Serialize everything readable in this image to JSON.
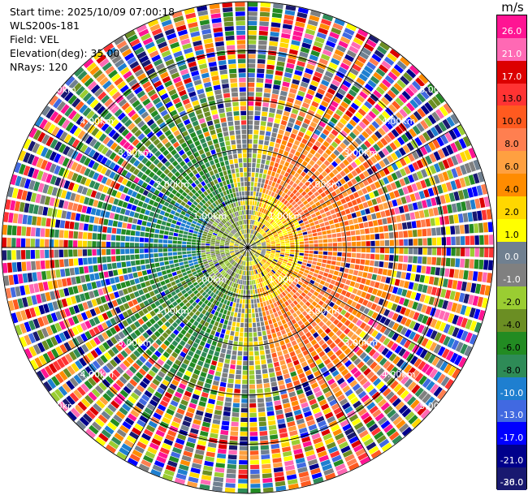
{
  "header": {
    "start_time": "Start time: 2025/10/09 07:00:18",
    "instrument": "WLS200s-181",
    "field": "Field: VEL",
    "elevation": "Elevation(deg): 35.00",
    "nrays": "NRays: 120"
  },
  "colorbar": {
    "unit": "m/s",
    "labels": [
      "26.0",
      "21.0",
      "17.0",
      "13.0",
      "10.0",
      "8.0",
      "6.0",
      "4.0",
      "2.0",
      "1.0",
      "0.0",
      "-1.0",
      "-2.0",
      "-4.0",
      "-6.0",
      "-8.0",
      "-10.0",
      "-13.0",
      "-17.0",
      "-21.0",
      "-26.0",
      "-30.0"
    ],
    "colors": [
      "#ff1493",
      "#ff69b4",
      "#dc0000",
      "#ff3333",
      "#ff5a1f",
      "#ff7f50",
      "#ffa040",
      "#ff8c00",
      "#ffd700",
      "#ffff00",
      "#708090",
      "#808080",
      "#9acd32",
      "#6b8e23",
      "#228b22",
      "#2e8b57",
      "#1e7fd0",
      "#4169e1",
      "#0000ff",
      "#00008b",
      "#191970"
    ]
  },
  "chart_data": {
    "type": "ppi",
    "field": "VEL",
    "units": "m/s",
    "elevation_deg": 35.0,
    "n_rays": 120,
    "range_rings_km": [
      1.0,
      2.0,
      3.0,
      4.0,
      5.0
    ],
    "ring_labels": [
      "1.00km",
      "2.00km",
      "3.00km",
      "4.00km",
      "5.00km"
    ],
    "value_range": [
      -30,
      26
    ],
    "dominant_pattern": {
      "east_sector": "positive (orange/yellow, 2 to 10 m/s)",
      "west_sector": "negative (green/blue, -2 to -10 m/s)",
      "outer_ranges": "noisy, all colors"
    }
  }
}
